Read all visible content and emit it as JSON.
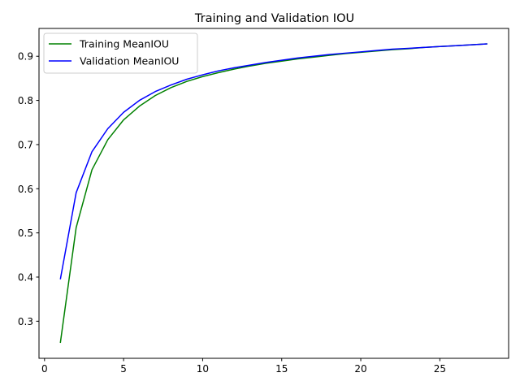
{
  "chart_data": {
    "type": "line",
    "title": "Training and Validation IOU",
    "xlabel": "",
    "ylabel": "",
    "xlim": [
      -0.35,
      29.35
    ],
    "ylim": [
      0.216,
      0.963
    ],
    "xticks": [
      0,
      5,
      10,
      15,
      20,
      25
    ],
    "yticks": [
      0.3,
      0.4,
      0.5,
      0.6,
      0.7,
      0.8,
      0.9
    ],
    "grid": false,
    "legend_position": "upper-left",
    "x": [
      1,
      2,
      3,
      4,
      5,
      6,
      7,
      8,
      9,
      10,
      11,
      12,
      13,
      14,
      15,
      16,
      17,
      18,
      19,
      20,
      21,
      22,
      23,
      24,
      25,
      26,
      27,
      28
    ],
    "series": [
      {
        "name": "Training MeanIOU",
        "color": "#008000",
        "values": [
          0.251,
          0.512,
          0.643,
          0.711,
          0.756,
          0.787,
          0.811,
          0.829,
          0.843,
          0.854,
          0.863,
          0.871,
          0.878,
          0.884,
          0.889,
          0.894,
          0.898,
          0.902,
          0.906,
          0.909,
          0.912,
          0.915,
          0.917,
          0.92,
          0.922,
          0.924,
          0.926,
          0.928
        ]
      },
      {
        "name": "Validation MeanIOU",
        "color": "#0000ff",
        "values": [
          0.395,
          0.591,
          0.684,
          0.736,
          0.773,
          0.8,
          0.82,
          0.835,
          0.848,
          0.858,
          0.867,
          0.874,
          0.88,
          0.886,
          0.891,
          0.896,
          0.9,
          0.904,
          0.907,
          0.91,
          0.913,
          0.916,
          0.918,
          0.92,
          0.922,
          0.924,
          0.926,
          0.928
        ]
      }
    ]
  }
}
